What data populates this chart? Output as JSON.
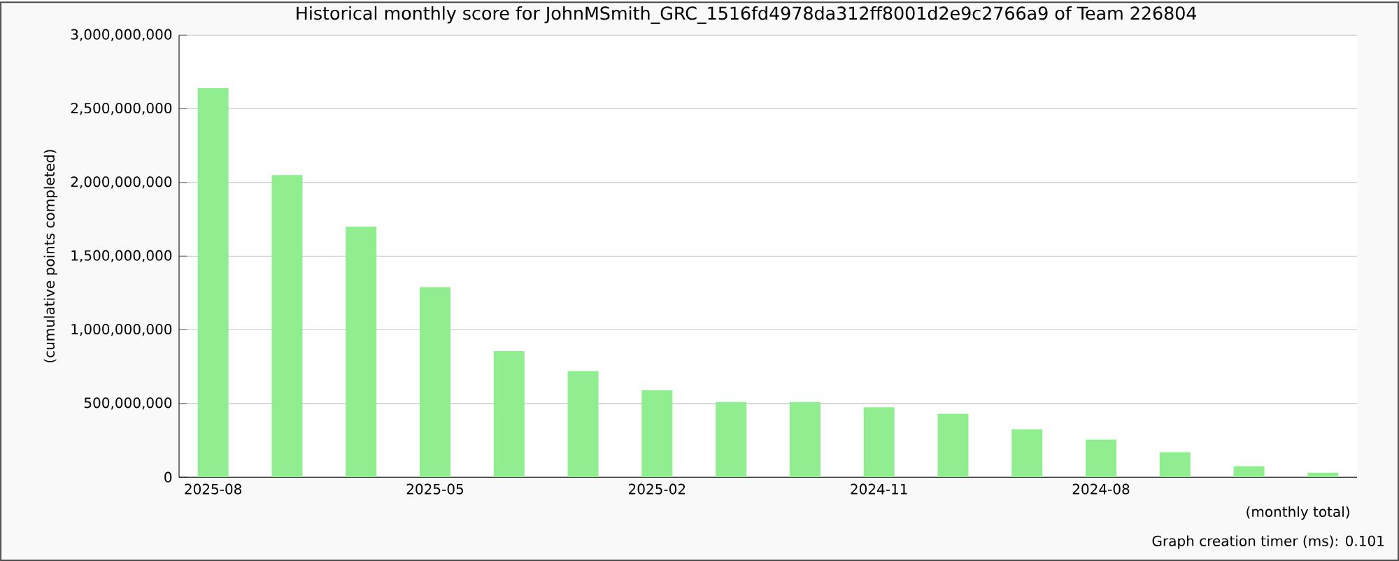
{
  "chart_data": {
    "type": "bar",
    "title": "Historical monthly score for JohnMSmith_GRC_1516fd4978da312ff8001d2e9c2766a9 of Team 226804",
    "xlabel": "(monthly total)",
    "ylabel": "(cumulative points completed)",
    "categories": [
      "2025-08",
      null,
      null,
      "2025-05",
      null,
      null,
      "2025-02",
      null,
      null,
      "2024-11",
      null,
      null,
      "2024-08",
      null,
      null,
      null
    ],
    "values": [
      2640000000,
      2050000000,
      1700000000,
      1290000000,
      855000000,
      720000000,
      590000000,
      510000000,
      510000000,
      475000000,
      430000000,
      325000000,
      255000000,
      170000000,
      75000000,
      30000000
    ],
    "color": "#90ee90",
    "ylim": [
      0,
      3000000000
    ],
    "yticks": [
      0,
      {
        "value": 500000000,
        "label": "500,000,000"
      },
      {
        "value": 1000000000,
        "label": "1,000,000,000"
      },
      {
        "value": 1500000000,
        "label": "1,500,000,000"
      },
      {
        "value": 2000000000,
        "label": "2,000,000,000"
      },
      {
        "value": 2500000000,
        "label": "2,500,000,000"
      },
      {
        "value": 3000000000,
        "label": "3,000,000,000"
      }
    ],
    "grid": "y",
    "annotations": [
      "Graph creation timer (ms): 0.101"
    ]
  }
}
